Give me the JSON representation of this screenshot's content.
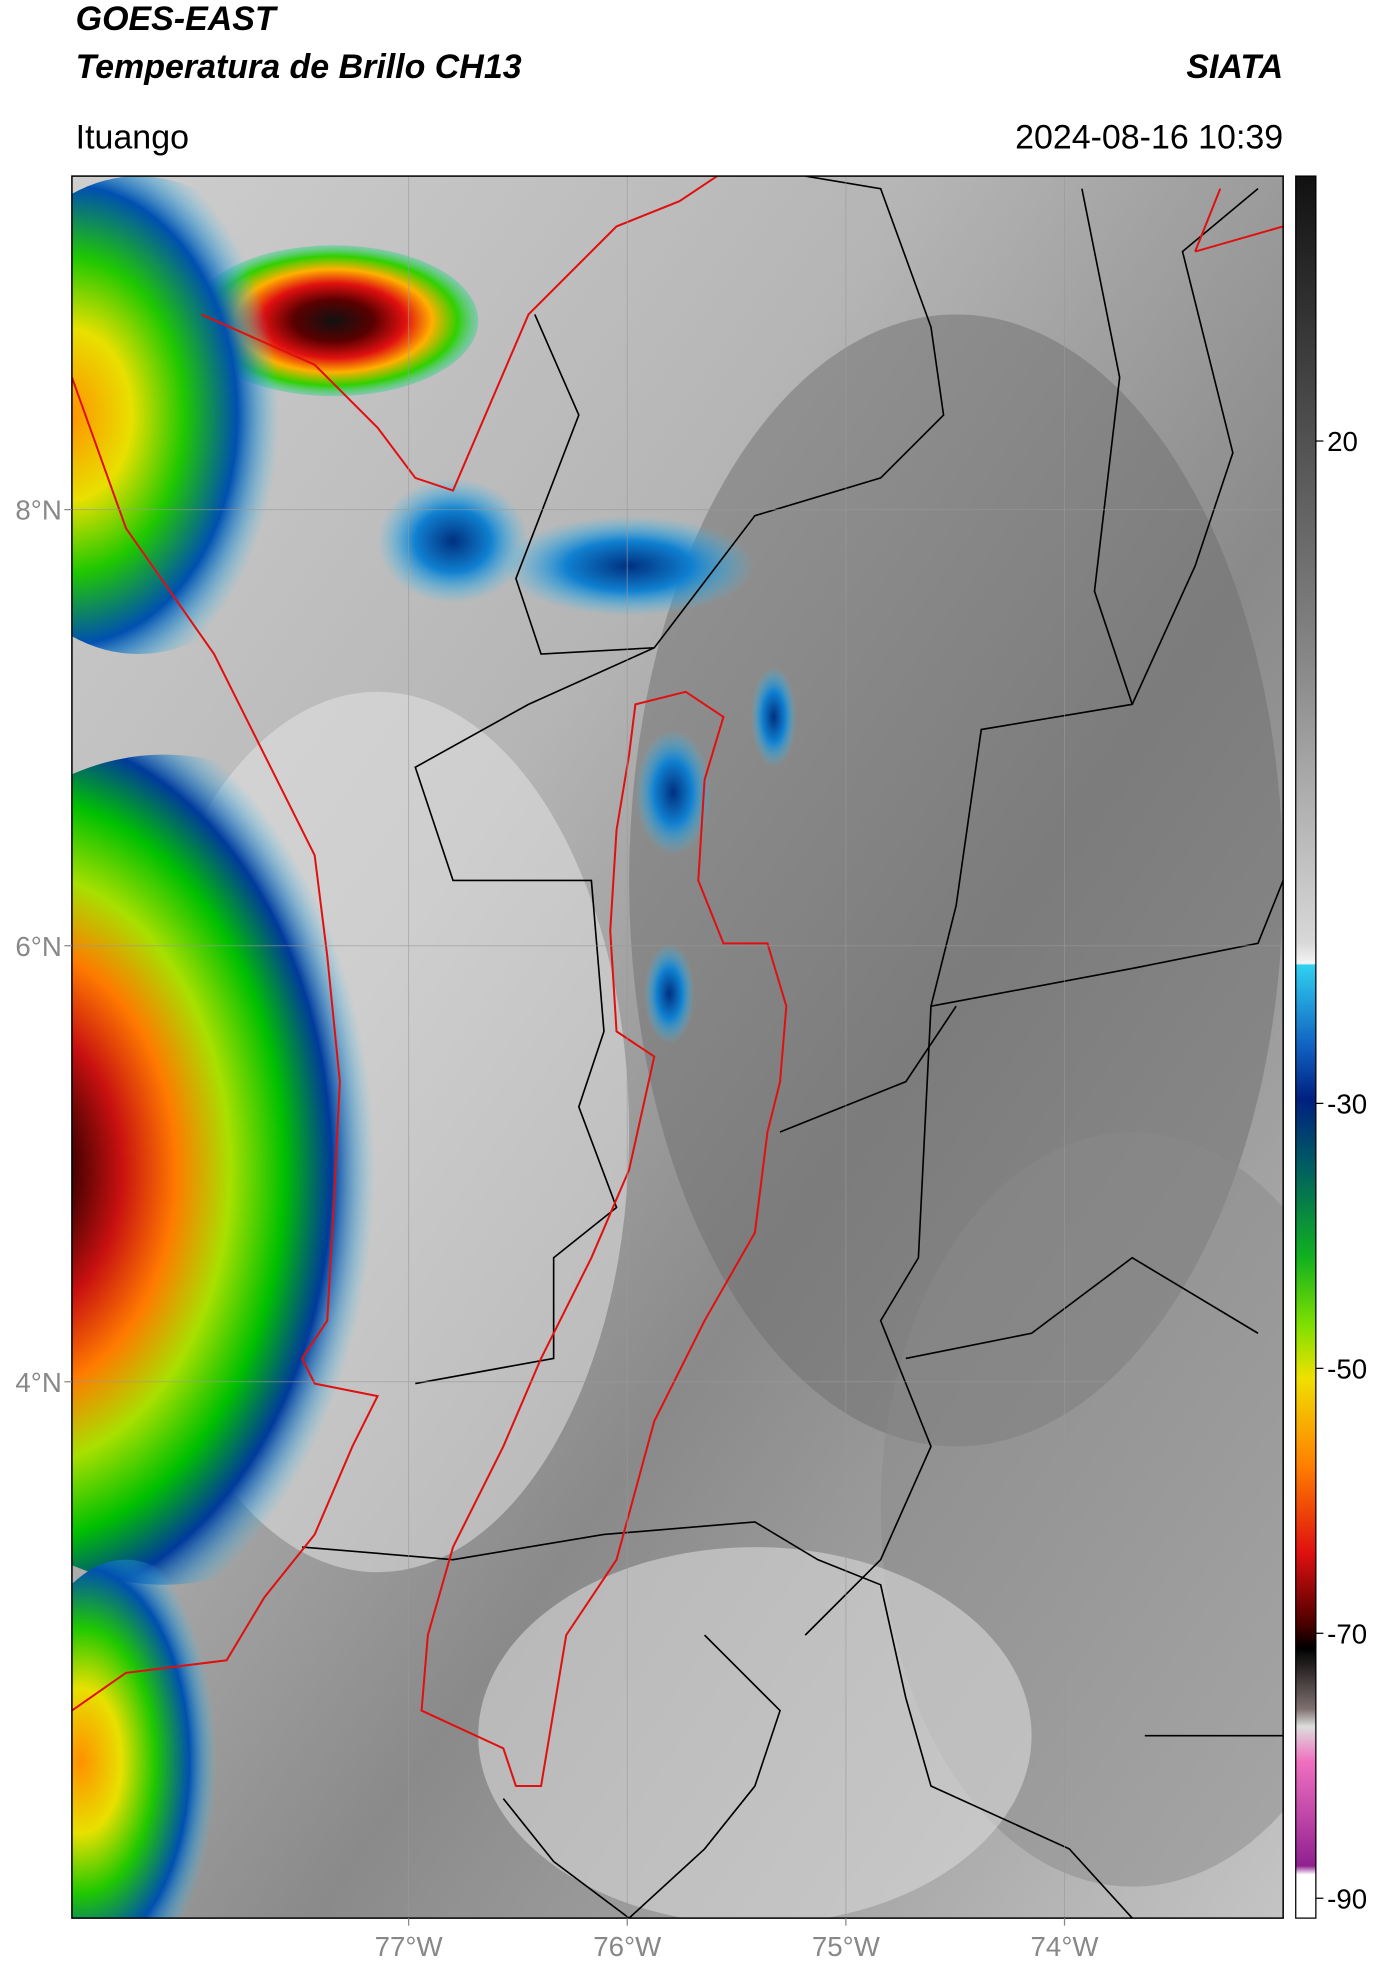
{
  "header": {
    "satellite": "GOES-EAST",
    "product": "Temperatura de Brillo CH13",
    "organization": "SIATA",
    "location": "Ituango",
    "datetime": "2024-08-16 10:39"
  },
  "map": {
    "xlim": [
      -78.54,
      -73.0
    ],
    "ylim": [
      1.54,
      9.53
    ],
    "xticks": [
      {
        "value": -77,
        "label": "77°W"
      },
      {
        "value": -76,
        "label": "76°W"
      },
      {
        "value": -75,
        "label": "75°W"
      },
      {
        "value": -74,
        "label": "74°W"
      }
    ],
    "yticks": [
      {
        "value": 8,
        "label": "8°N"
      },
      {
        "value": 6,
        "label": "6°N"
      },
      {
        "value": 4,
        "label": "4°N"
      }
    ],
    "grid": true
  },
  "colorbar": {
    "lim": [
      -91.5,
      40
    ],
    "ticks": [
      20,
      -30,
      -50,
      -70,
      -90
    ]
  }
}
